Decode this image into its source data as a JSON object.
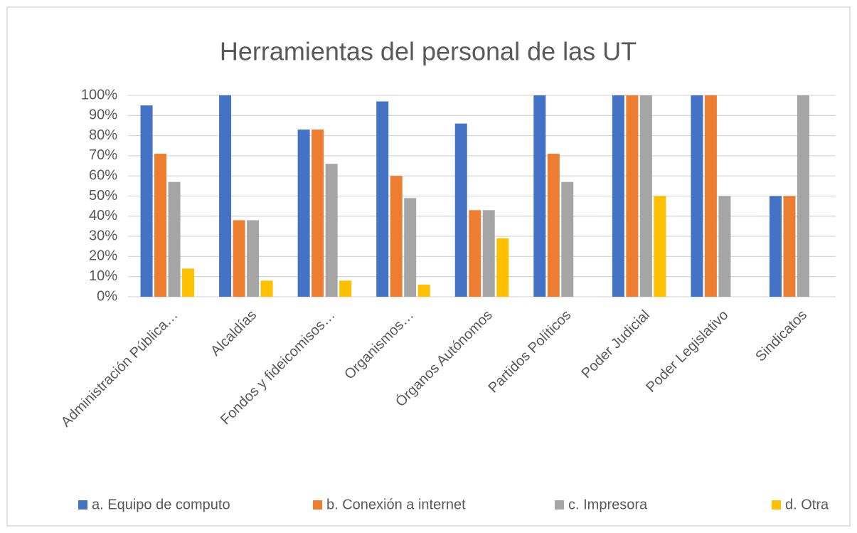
{
  "chart_data": {
    "type": "bar",
    "title": "Herramientas del personal de las UT",
    "categories": [
      "Administración Pública…",
      "Alcaldías",
      "Fondos y fideicomisos…",
      "Organismos…",
      "Órganos Autónomos",
      "Partidos Políticos",
      "Poder Judicial",
      "Poder Legislativo",
      "Sindicatos"
    ],
    "series": [
      {
        "name": "a. Equipo de computo",
        "color": "#4472c4",
        "values": [
          95,
          100,
          83,
          97,
          86,
          100,
          100,
          100,
          50
        ]
      },
      {
        "name": "b. Conexión a internet",
        "color": "#ed7d31",
        "values": [
          71,
          38,
          83,
          60,
          43,
          71,
          100,
          100,
          50
        ]
      },
      {
        "name": "c. Impresora",
        "color": "#a5a5a5",
        "values": [
          57,
          38,
          66,
          49,
          43,
          57,
          100,
          50,
          100
        ]
      },
      {
        "name": "d. Otra",
        "color": "#ffc000",
        "values": [
          14,
          8,
          8,
          6,
          29,
          0,
          50,
          0,
          0
        ]
      }
    ],
    "ylim": [
      0,
      100
    ],
    "yticks": [
      {
        "value": 0,
        "label": "0%"
      },
      {
        "value": 10,
        "label": "10%"
      },
      {
        "value": 20,
        "label": "20%"
      },
      {
        "value": 30,
        "label": "30%"
      },
      {
        "value": 40,
        "label": "40%"
      },
      {
        "value": 50,
        "label": "50%"
      },
      {
        "value": 60,
        "label": "60%"
      },
      {
        "value": 70,
        "label": "70%"
      },
      {
        "value": 80,
        "label": "80%"
      },
      {
        "value": 90,
        "label": "90%"
      },
      {
        "value": 100,
        "label": "100%"
      }
    ],
    "grid": true,
    "legend": "bottom"
  }
}
